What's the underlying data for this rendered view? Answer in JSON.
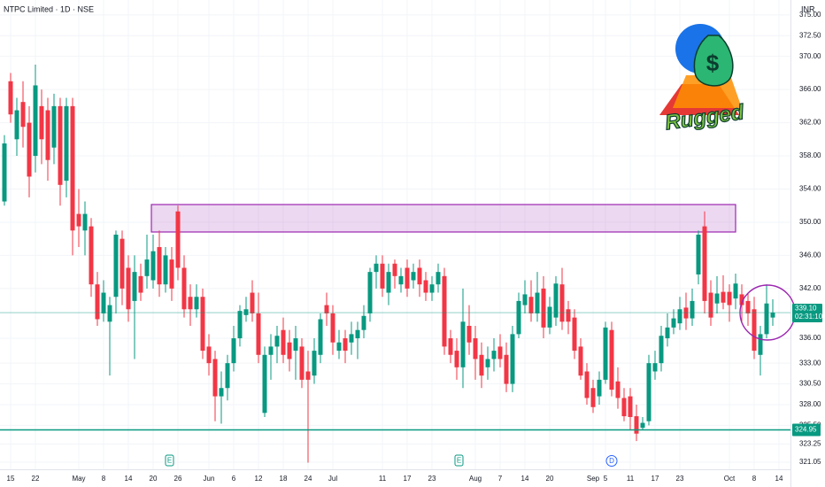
{
  "chart_data": {
    "type": "candlestick",
    "title": "NTPC Limited · 1D · NSE",
    "currency": "INR",
    "up_color": "#089981",
    "down_color": "#f23645",
    "grid": true,
    "ylim": [
      320.2,
      376.8
    ],
    "yticks": [
      321.05,
      323.25,
      {
        "value": 325.5,
        "label": "325.50"
      },
      {
        "value": 328,
        "label": "328.00"
      },
      {
        "value": 330.5,
        "label": "330.50"
      },
      {
        "value": 333,
        "label": "333.00"
      },
      {
        "value": 336,
        "label": "336.00"
      },
      {
        "value": 342,
        "label": "342.00"
      },
      {
        "value": 346,
        "label": "346.00"
      },
      {
        "value": 350,
        "label": "350.00"
      },
      {
        "value": 354,
        "label": "354.00"
      },
      {
        "value": 358,
        "label": "358.00"
      },
      {
        "value": 362,
        "label": "362.00"
      },
      {
        "value": 366,
        "label": "366.00"
      },
      {
        "value": 370,
        "label": "370.00"
      },
      {
        "value": 372.5,
        "label": "372.50"
      },
      {
        "value": 375,
        "label": "375.00"
      }
    ],
    "categories": [
      null,
      "15",
      null,
      null,
      null,
      "22",
      null,
      null,
      null,
      null,
      null,
      null,
      "May",
      null,
      null,
      null,
      "8",
      null,
      null,
      null,
      "14",
      null,
      null,
      null,
      "20",
      null,
      null,
      null,
      "26",
      null,
      null,
      null,
      null,
      "Jun",
      null,
      null,
      null,
      "6",
      null,
      null,
      null,
      "12",
      null,
      null,
      null,
      "18",
      null,
      null,
      null,
      "24",
      null,
      null,
      null,
      "Jul",
      null,
      null,
      null,
      null,
      null,
      null,
      null,
      "11",
      null,
      null,
      null,
      "17",
      null,
      null,
      null,
      "23",
      null,
      null,
      null,
      null,
      null,
      null,
      "Aug",
      null,
      null,
      null,
      "7",
      null,
      null,
      null,
      "14",
      null,
      null,
      null,
      "20",
      null,
      null,
      null,
      null,
      null,
      null,
      "Sep",
      null,
      "5",
      null,
      null,
      null,
      "11",
      null,
      null,
      null,
      "17",
      null,
      null,
      null,
      "23",
      null,
      null,
      null,
      null,
      null,
      null,
      null,
      "Oct",
      null,
      null,
      null,
      "8",
      null,
      null,
      null,
      "14"
    ],
    "open": [
      352.5,
      367,
      360,
      364.5,
      362,
      358,
      364,
      363.5,
      359,
      364,
      355,
      364,
      351,
      349,
      349.5,
      342.5,
      339,
      338,
      341,
      348,
      344.5,
      340.5,
      343.5,
      343.5,
      343,
      347,
      342.5,
      345.5,
      351.3,
      344.5,
      341,
      339.5,
      341,
      335,
      333.5,
      329,
      330,
      333,
      336,
      338.8,
      341.5,
      339,
      327,
      334,
      335,
      337,
      335.5,
      334.5,
      335,
      332,
      331.5,
      334,
      340,
      339,
      334.5,
      336,
      335.5,
      336,
      337,
      339,
      344,
      345,
      341.5,
      345,
      342.5,
      344.5,
      343,
      344.5,
      343,
      341.5,
      342.5,
      343.5,
      336,
      334.5,
      332.5,
      337.5,
      336,
      334,
      332.5,
      333.5,
      335,
      334,
      330.5,
      336.5,
      340,
      341,
      339,
      342,
      337.3,
      338.5,
      342.5,
      339.5,
      338.5,
      335,
      332,
      330,
      329,
      331,
      337,
      330.8,
      328.8,
      329,
      326.6,
      325.2,
      326,
      332,
      333,
      336,
      337.3,
      337.8,
      339.7,
      338.4,
      343.7,
      349.5,
      341.5,
      340.2,
      341.6,
      341.6,
      340.8,
      341.3,
      340.5,
      339.5,
      334,
      336.5,
      338.5,
      null
    ],
    "high": [
      360.5,
      368,
      365,
      367,
      364,
      369,
      366,
      365,
      365.5,
      365,
      365,
      365,
      354,
      352.5,
      350.5,
      344,
      343,
      341,
      349,
      349,
      346,
      346,
      345,
      348.5,
      348.5,
      349,
      347,
      347,
      352,
      346,
      342.5,
      342.5,
      342,
      336.5,
      334.5,
      332,
      334,
      337.5,
      340,
      341,
      343,
      341.5,
      335,
      336.5,
      337.5,
      338.5,
      337,
      337.5,
      336,
      334.5,
      336,
      339,
      341.5,
      340,
      337,
      337,
      338,
      338,
      340,
      344.5,
      346,
      346,
      345,
      345.5,
      344.5,
      345.5,
      345,
      345.5,
      344,
      343.5,
      345,
      344.5,
      337,
      336,
      342,
      340,
      337.5,
      335.5,
      335,
      336,
      336.5,
      335.5,
      337.5,
      341.5,
      343,
      343,
      344,
      343.5,
      341,
      343.5,
      344.5,
      340.5,
      339.5,
      336,
      333,
      331,
      332,
      338,
      338,
      332.5,
      330,
      330,
      328,
      326.5,
      334,
      334.5,
      337.5,
      339,
      339.5,
      341,
      341.5,
      342,
      349,
      351.3,
      343,
      343.5,
      343.6,
      342.5,
      343.8,
      342.5,
      341.5,
      341,
      337.5,
      342.5,
      340.7,
      null
    ],
    "low": [
      352,
      362,
      358,
      359,
      353,
      356,
      357,
      355,
      357,
      352,
      353,
      346,
      347,
      346,
      341,
      337.5,
      338,
      331.5,
      339,
      340,
      338,
      333.5,
      340.5,
      342,
      342,
      341,
      341.5,
      340.5,
      343,
      338.5,
      337.5,
      338.5,
      333.5,
      331.5,
      326,
      325.7,
      328.5,
      332,
      335,
      338,
      338,
      333,
      326.5,
      331,
      333,
      333,
      332,
      331,
      330,
      321,
      330.5,
      333,
      337.5,
      334,
      333.5,
      333,
      334,
      333.5,
      336,
      338,
      342,
      341,
      340,
      342,
      341.5,
      341,
      342,
      341,
      340.5,
      340.5,
      341.5,
      334,
      333,
      331,
      330,
      334,
      331,
      330,
      331,
      332,
      332.5,
      329.5,
      329.5,
      336,
      339,
      338,
      338,
      336,
      336.5,
      337.5,
      337,
      336.5,
      333.5,
      331,
      328,
      327,
      328,
      330.5,
      329,
      327.5,
      326,
      325,
      323.6,
      325,
      325.5,
      331,
      332,
      335,
      336.5,
      337,
      337,
      337.5,
      342.5,
      339,
      337.5,
      339,
      339.5,
      338,
      339.5,
      338,
      337.5,
      333.5,
      331.5,
      336,
      337.5,
      null
    ],
    "close": [
      359.5,
      363,
      363.5,
      361.5,
      355.5,
      366.5,
      360,
      357.5,
      364,
      354.5,
      364,
      349,
      349.5,
      351,
      342.5,
      338.3,
      341.5,
      340,
      348.5,
      342,
      339.5,
      344,
      341.5,
      345.5,
      346.5,
      342.5,
      346,
      342,
      344.5,
      339.5,
      339.5,
      341,
      334.5,
      333,
      329,
      330,
      333,
      336,
      339.3,
      339.5,
      339,
      334,
      334,
      335,
      336.3,
      334,
      333.5,
      336,
      331,
      331,
      334.5,
      338.3,
      339,
      335.5,
      335.5,
      334.5,
      336.5,
      337,
      338.7,
      344,
      345,
      342,
      344,
      343.5,
      343.5,
      342,
      344,
      342.5,
      341.5,
      342.5,
      344,
      335,
      334,
      332.5,
      338,
      335.5,
      333.5,
      331.5,
      333.5,
      334.5,
      333.5,
      330.5,
      336.5,
      340.5,
      341.3,
      339,
      341.5,
      337.3,
      339.8,
      342.6,
      338,
      338,
      334.5,
      331.5,
      328.8,
      327.7,
      331,
      337.3,
      329.8,
      328.8,
      326.6,
      326.5,
      324.5,
      325.8,
      333,
      333,
      336.3,
      337.3,
      338.4,
      339.5,
      338.4,
      340.5,
      348.5,
      340.5,
      338.5,
      341.4,
      340.3,
      340,
      342.6,
      340,
      339,
      334.5,
      336.5,
      340.2,
      339.1,
      null
    ],
    "support_line": 324.95,
    "last_price": {
      "value": 339.1,
      "label": "339.10"
    },
    "countdown": "02:31:10",
    "event_markers": [
      "E",
      "E",
      "D"
    ]
  },
  "logo": {
    "symbol": "$",
    "text": "Rugged"
  }
}
